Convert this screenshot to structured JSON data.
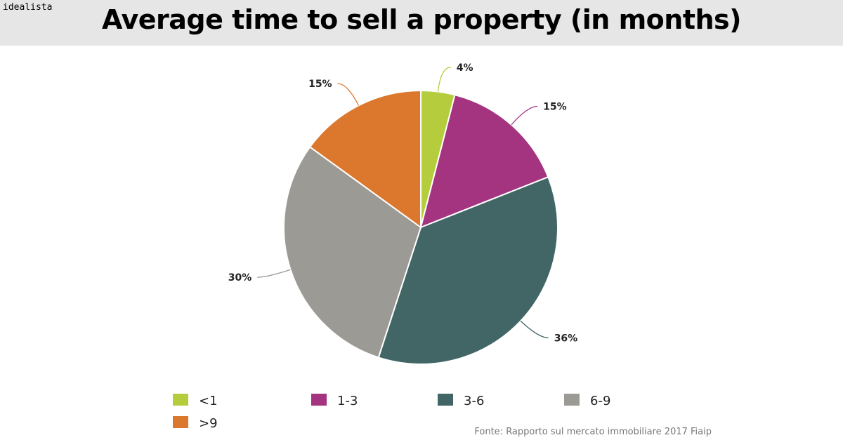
{
  "brand": "idealista",
  "title": "Average time to sell a property (in months)",
  "source": "Fonte: Rapporto sul mercato immobiliare 2017 Fiaip",
  "chart_data": {
    "type": "pie",
    "title": "Average time to sell a property (in months)",
    "slices": [
      {
        "label": "<1",
        "value": 4,
        "value_label": "4%",
        "color": "#b5cd3c"
      },
      {
        "label": "1-3",
        "value": 15,
        "value_label": "15%",
        "color": "#a43380"
      },
      {
        "label": "3-6",
        "value": 36,
        "value_label": "36%",
        "color": "#416665"
      },
      {
        "label": "6-9",
        "value": 30,
        "value_label": "30%",
        "color": "#9c9a95"
      },
      {
        "label": ">9",
        "value": 15,
        "value_label": "15%",
        "color": "#dc782e"
      }
    ],
    "start": "12 o'clock",
    "direction": "clockwise",
    "legend_position": "bottom"
  }
}
